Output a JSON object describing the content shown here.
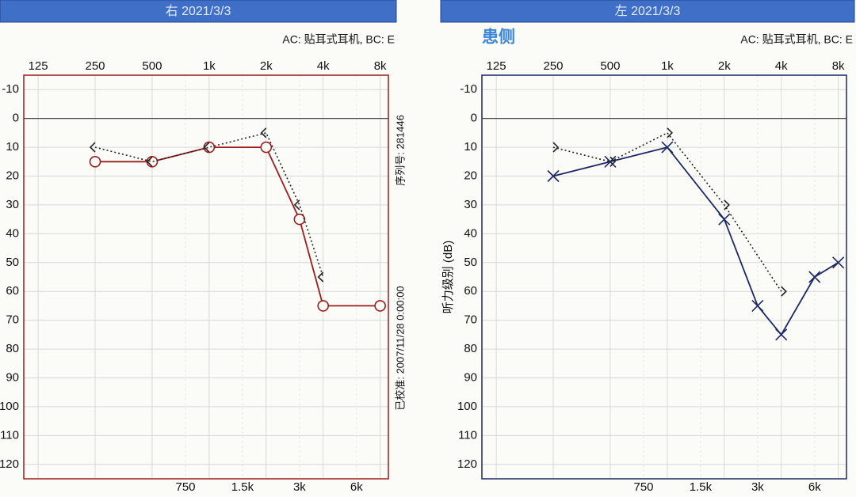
{
  "chart_data": [
    {
      "type": "line",
      "header": "右 2021/3/3",
      "note": "AC: 贴耳式耳机, BC: E",
      "side_labels": [
        "序列号: 281446",
        "已校准: 2007/11/28 0:00:00"
      ],
      "xscale": "log",
      "xlim": [
        105,
        8840
      ],
      "ylim": [
        -15,
        125
      ],
      "y_inverted": true,
      "grid": true,
      "hline": 0,
      "xticks": [
        125,
        250,
        500,
        {
          "value": 1000,
          "label": "1k"
        },
        {
          "value": 2000,
          "label": "2k"
        },
        {
          "value": 4000,
          "label": "4k"
        },
        {
          "value": 8000,
          "label": "8k"
        }
      ],
      "xticks_minor": [
        750,
        {
          "value": 1500,
          "label": "1.5k"
        },
        {
          "value": 3000,
          "label": "3k"
        },
        {
          "value": 6000,
          "label": "6k"
        }
      ],
      "yticks": [
        -10,
        0,
        10,
        20,
        30,
        40,
        50,
        60,
        70,
        80,
        90,
        100,
        110,
        120
      ],
      "series": [
        {
          "color": "#9b1c1c",
          "marker": "circle",
          "line": "solid",
          "x": [
            250,
            500,
            1000,
            2000,
            3000,
            4000,
            8000
          ],
          "values": [
            15,
            15,
            10,
            10,
            35,
            65,
            65
          ]
        },
        {
          "color": "#222222",
          "marker": "lt",
          "line": "dotted",
          "x": [
            250,
            500,
            1000,
            2000,
            3000,
            4000
          ],
          "values": [
            10,
            15,
            10,
            5,
            30,
            55
          ]
        }
      ]
    },
    {
      "type": "line",
      "header": "左 2021/3/3",
      "note": "AC: 贴耳式耳机, BC: E",
      "subtitle": "患侧",
      "ylabel": "听力级别 (dB)",
      "xscale": "log",
      "xlim": [
        105,
        8840
      ],
      "ylim": [
        -15,
        125
      ],
      "y_inverted": true,
      "grid": true,
      "hline": 0,
      "xticks": [
        125,
        250,
        500,
        {
          "value": 1000,
          "label": "1k"
        },
        {
          "value": 2000,
          "label": "2k"
        },
        {
          "value": 4000,
          "label": "4k"
        },
        {
          "value": 8000,
          "label": "8k"
        }
      ],
      "xticks_minor": [
        750,
        {
          "value": 1500,
          "label": "1.5k"
        },
        {
          "value": 3000,
          "label": "3k"
        },
        {
          "value": 6000,
          "label": "6k"
        }
      ],
      "yticks": [
        -10,
        0,
        10,
        20,
        30,
        40,
        50,
        60,
        70,
        80,
        90,
        100,
        110,
        120
      ],
      "series": [
        {
          "color": "#1c2766",
          "marker": "cross",
          "line": "solid",
          "x": [
            250,
            500,
            1000,
            2000,
            3000,
            4000,
            6000,
            8000
          ],
          "values": [
            20,
            15,
            10,
            35,
            65,
            75,
            55,
            50
          ]
        },
        {
          "color": "#222222",
          "marker": "gt",
          "line": "dotted",
          "x": [
            250,
            500,
            1000,
            2000,
            4000
          ],
          "values": [
            10,
            15,
            5,
            30,
            60
          ]
        }
      ]
    }
  ]
}
